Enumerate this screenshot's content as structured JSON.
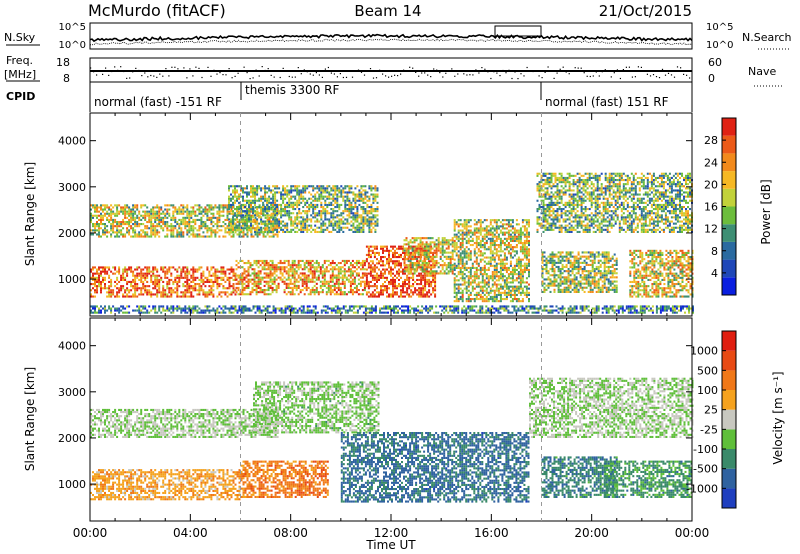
{
  "header": {
    "station": "McMurdo (fitACF)",
    "beam": "Beam 14",
    "date": "21/Oct/2015"
  },
  "noise_panel": {
    "left_label": "N.Sky",
    "right_label": "N.Search",
    "ticks_left": [
      "10^5",
      "10^0"
    ],
    "ticks_right": [
      "10^5",
      "10^0"
    ]
  },
  "freq_panel": {
    "left_label_1": "Freq.",
    "left_label_2": "[MHz]",
    "right_label": "Nave",
    "ticks_left": [
      "18",
      "8"
    ],
    "ticks_right": [
      "60",
      "0"
    ]
  },
  "cpid": {
    "label": "CPID",
    "segments": [
      {
        "text": "normal (fast) -151 RF",
        "start_hour": 0,
        "end_hour": 6
      },
      {
        "text": "themis 3300 RF",
        "start_hour": 6,
        "end_hour": 18
      },
      {
        "text": "normal (fast) 151 RF",
        "start_hour": 18,
        "end_hour": 24
      }
    ]
  },
  "chart_data": [
    {
      "type": "heatmap",
      "title": "",
      "xlabel": "Time UT",
      "ylabel": "Slant Range [km]",
      "xlim": [
        0,
        24
      ],
      "ylim": [
        200,
        4600
      ],
      "x_ticks": [
        "00:00",
        "04:00",
        "08:00",
        "12:00",
        "16:00",
        "20:00",
        "00:00"
      ],
      "y_ticks": [
        1000,
        2000,
        3000,
        4000
      ],
      "colorbar": {
        "label": "Power [dB]",
        "ticks": [
          4,
          8,
          12,
          16,
          20,
          24,
          28
        ],
        "range": [
          0,
          30
        ],
        "colors": [
          "#0a1fe0",
          "#1f47b8",
          "#2a6aa0",
          "#3e8f74",
          "#6cbd3c",
          "#c2d23a",
          "#f6b824",
          "#f28a1c",
          "#ec5a18",
          "#e02214"
        ]
      },
      "echo_regions": [
        {
          "t0": 0.0,
          "t1": 5.8,
          "r0": 600,
          "r1": 1250,
          "level": 0.82
        },
        {
          "t0": 5.8,
          "t1": 11.0,
          "r0": 650,
          "r1": 1400,
          "level": 0.7
        },
        {
          "t0": 0.0,
          "t1": 7.5,
          "r0": 1900,
          "r1": 2600,
          "level": 0.55
        },
        {
          "t0": 5.5,
          "t1": 11.5,
          "r0": 2000,
          "r1": 3000,
          "level": 0.45
        },
        {
          "t0": 11.0,
          "t1": 13.8,
          "r0": 600,
          "r1": 1700,
          "level": 0.9
        },
        {
          "t0": 12.5,
          "t1": 14.5,
          "r0": 1100,
          "r1": 1900,
          "level": 0.6
        },
        {
          "t0": 14.5,
          "t1": 17.5,
          "r0": 500,
          "r1": 2300,
          "level": 0.55
        },
        {
          "t0": 17.8,
          "t1": 24.0,
          "r0": 2000,
          "r1": 3300,
          "level": 0.45
        },
        {
          "t0": 18.0,
          "t1": 21.0,
          "r0": 700,
          "r1": 1600,
          "level": 0.5
        },
        {
          "t0": 21.5,
          "t1": 24.0,
          "r0": 600,
          "r1": 1600,
          "level": 0.6
        },
        {
          "t0": 0.0,
          "t1": 24.0,
          "r0": 250,
          "r1": 400,
          "level": 0.3
        }
      ]
    },
    {
      "type": "heatmap",
      "title": "",
      "xlabel": "Time UT",
      "ylabel": "Slant Range [km]",
      "xlim": [
        0,
        24
      ],
      "ylim": [
        200,
        4600
      ],
      "x_ticks": [
        "00:00",
        "04:00",
        "08:00",
        "12:00",
        "16:00",
        "20:00",
        "00:00"
      ],
      "y_ticks": [
        1000,
        2000,
        3000,
        4000
      ],
      "colorbar": {
        "label": "Velocity [m s⁻¹]",
        "ticks": [
          "1000",
          "500",
          "100",
          "25",
          "-25",
          "-100",
          "-500",
          "-1000"
        ],
        "colors": [
          "#1f3fbf",
          "#2f62a0",
          "#3a8a6a",
          "#5fbf3a",
          "#c8c8c0",
          "#f5a21e",
          "#f07818",
          "#e84a14",
          "#e01e10"
        ]
      },
      "echo_regions": [
        {
          "t0": 0.0,
          "t1": 6.0,
          "r0": 650,
          "r1": 1300,
          "level": 0.62
        },
        {
          "t0": 6.0,
          "t1": 9.5,
          "r0": 700,
          "r1": 1500,
          "level": 0.72
        },
        {
          "t0": 0.0,
          "t1": 7.5,
          "r0": 2000,
          "r1": 2600,
          "level": 0.45
        },
        {
          "t0": 6.5,
          "t1": 11.5,
          "r0": 2100,
          "r1": 3200,
          "level": 0.42
        },
        {
          "t0": 10.0,
          "t1": 17.5,
          "r0": 600,
          "r1": 2100,
          "level": 0.2
        },
        {
          "t0": 17.5,
          "t1": 24.0,
          "r0": 2000,
          "r1": 3300,
          "level": 0.45
        },
        {
          "t0": 18.0,
          "t1": 21.0,
          "r0": 700,
          "r1": 1600,
          "level": 0.25
        },
        {
          "t0": 20.5,
          "t1": 24.0,
          "r0": 700,
          "r1": 1500,
          "level": 0.3
        }
      ]
    }
  ]
}
